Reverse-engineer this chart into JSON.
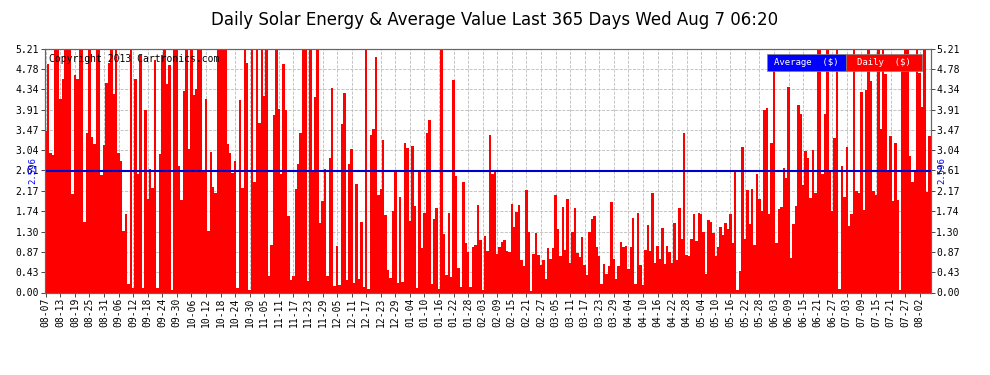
{
  "title": "Daily Solar Energy & Average Value Last 365 Days Wed Aug 7 06:20",
  "copyright": "Copyright 2013 Cartronics.com",
  "average_value": 2.596,
  "ylim": [
    0.0,
    5.21
  ],
  "yticks": [
    0.0,
    0.43,
    0.87,
    1.3,
    1.74,
    2.17,
    2.61,
    3.04,
    3.47,
    3.91,
    4.34,
    4.78,
    5.21
  ],
  "bar_color": "#FF0000",
  "avg_line_color": "#0000CD",
  "background_color": "#FFFFFF",
  "title_fontsize": 12,
  "copyright_fontsize": 7,
  "tick_fontsize": 7,
  "n_bars": 365,
  "x_tick_step": 6,
  "x_tick_labels": [
    "08-07",
    "08-13",
    "08-19",
    "08-25",
    "08-31",
    "09-06",
    "09-12",
    "09-18",
    "09-24",
    "09-30",
    "10-06",
    "10-12",
    "10-18",
    "10-24",
    "10-30",
    "11-05",
    "11-11",
    "11-17",
    "11-23",
    "11-29",
    "12-05",
    "12-11",
    "12-17",
    "12-23",
    "12-29",
    "01-04",
    "01-10",
    "01-16",
    "01-22",
    "01-28",
    "02-03",
    "02-09",
    "02-15",
    "02-21",
    "02-27",
    "03-05",
    "03-11",
    "03-17",
    "03-23",
    "03-29",
    "04-04",
    "04-10",
    "04-16",
    "04-22",
    "04-28",
    "05-04",
    "05-10",
    "05-16",
    "05-22",
    "05-28",
    "06-03",
    "06-09",
    "06-15",
    "06-21",
    "06-27",
    "07-03",
    "07-09",
    "07-15",
    "07-21",
    "07-27",
    "08-02"
  ],
  "legend_avg_label": "Average  ($)",
  "legend_daily_label": "Daily  ($)",
  "avg_label_text": "2.596"
}
